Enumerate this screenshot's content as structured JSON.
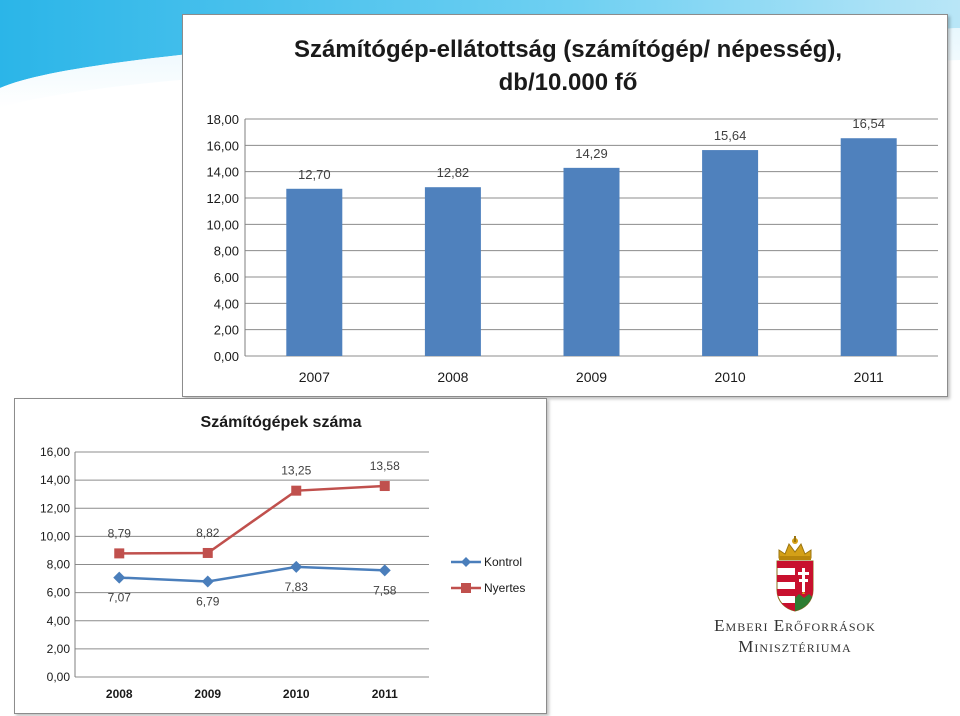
{
  "colors": {
    "band_dark": "#2bb5e8",
    "band_light": "#b9e6f7",
    "bar_fill": "#4f81bd",
    "gridline": "#8c8c8c",
    "kontrol": "#4a7ebb",
    "nyertes": "#c0504d"
  },
  "icons": [
    "hungarian-coat-of-arms-icon",
    "diamond-marker-icon",
    "square-marker-icon"
  ],
  "ministry": {
    "line1": "Emberi Erőforrások",
    "line2": "Minisztériuma"
  },
  "chart_data": [
    {
      "type": "bar",
      "title_line1": "Számítógép-ellátottság  (számítógép/ népesség),",
      "title_line2": "db/10.000 fő",
      "xlabel": "",
      "ylabel": "",
      "categories": [
        "2007",
        "2008",
        "2009",
        "2010",
        "2011"
      ],
      "values": [
        12.7,
        12.82,
        14.29,
        15.64,
        16.54
      ],
      "value_labels": [
        "12,70",
        "12,82",
        "14,29",
        "15,64",
        "16,54"
      ],
      "ylim": [
        0,
        18
      ],
      "yticks": [
        "0,00",
        "2,00",
        "4,00",
        "6,00",
        "8,00",
        "10,00",
        "12,00",
        "14,00",
        "16,00",
        "18,00"
      ],
      "grid": true,
      "legend": "none"
    },
    {
      "type": "line",
      "title": "Számítógépek száma",
      "xlabel": "",
      "ylabel": "",
      "categories": [
        "2008",
        "2009",
        "2010",
        "2011"
      ],
      "series": [
        {
          "name": "Kontrol",
          "values": [
            7.07,
            6.79,
            7.83,
            7.58
          ],
          "value_labels": [
            "7,07",
            "6,79",
            "7,83",
            "7,58"
          ],
          "marker": "diamond"
        },
        {
          "name": "Nyertes",
          "values": [
            8.79,
            8.82,
            13.25,
            13.58
          ],
          "value_labels": [
            "8,79",
            "8,82",
            "13,25",
            "13,58"
          ],
          "marker": "square"
        }
      ],
      "ylim": [
        0,
        16
      ],
      "yticks": [
        "0,00",
        "2,00",
        "4,00",
        "6,00",
        "8,00",
        "10,00",
        "12,00",
        "14,00",
        "16,00"
      ],
      "grid": true,
      "legend": "right"
    }
  ]
}
